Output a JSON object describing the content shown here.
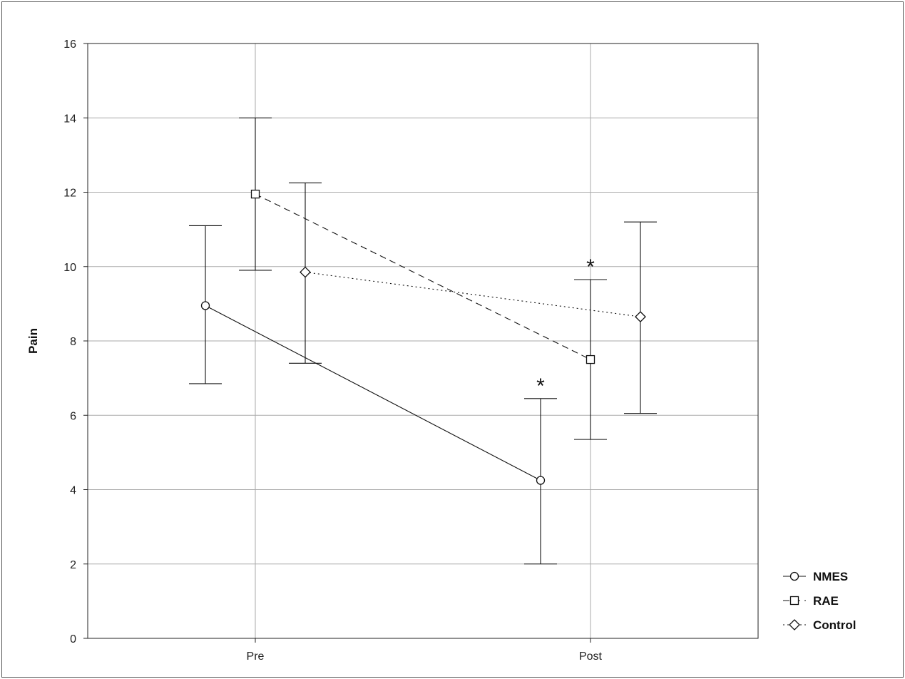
{
  "chart_data": {
    "type": "line",
    "categories": [
      "Pre",
      "Post"
    ],
    "ylabel": "Pain",
    "xlabel": "",
    "ylim": [
      0,
      16
    ],
    "yticks": [
      0,
      2,
      4,
      6,
      8,
      10,
      12,
      14,
      16
    ],
    "grid": true,
    "legend_position": "bottom-right",
    "series": [
      {
        "name": "NMES",
        "marker": "circle",
        "line_style": "solid",
        "values": [
          8.95,
          4.25
        ],
        "error_lower": [
          6.85,
          2.0
        ],
        "error_upper": [
          11.1,
          6.45
        ],
        "significance": [
          "",
          "*"
        ]
      },
      {
        "name": "RAE",
        "marker": "square",
        "line_style": "dashed",
        "values": [
          11.95,
          7.5
        ],
        "error_lower": [
          9.9,
          5.35
        ],
        "error_upper": [
          14.0,
          9.65
        ],
        "significance": [
          "",
          "*"
        ]
      },
      {
        "name": "Control",
        "marker": "diamond",
        "line_style": "dotted",
        "values": [
          9.85,
          8.65
        ],
        "error_lower": [
          7.4,
          6.05
        ],
        "error_upper": [
          12.25,
          11.2
        ],
        "significance": [
          "",
          ""
        ]
      }
    ]
  }
}
